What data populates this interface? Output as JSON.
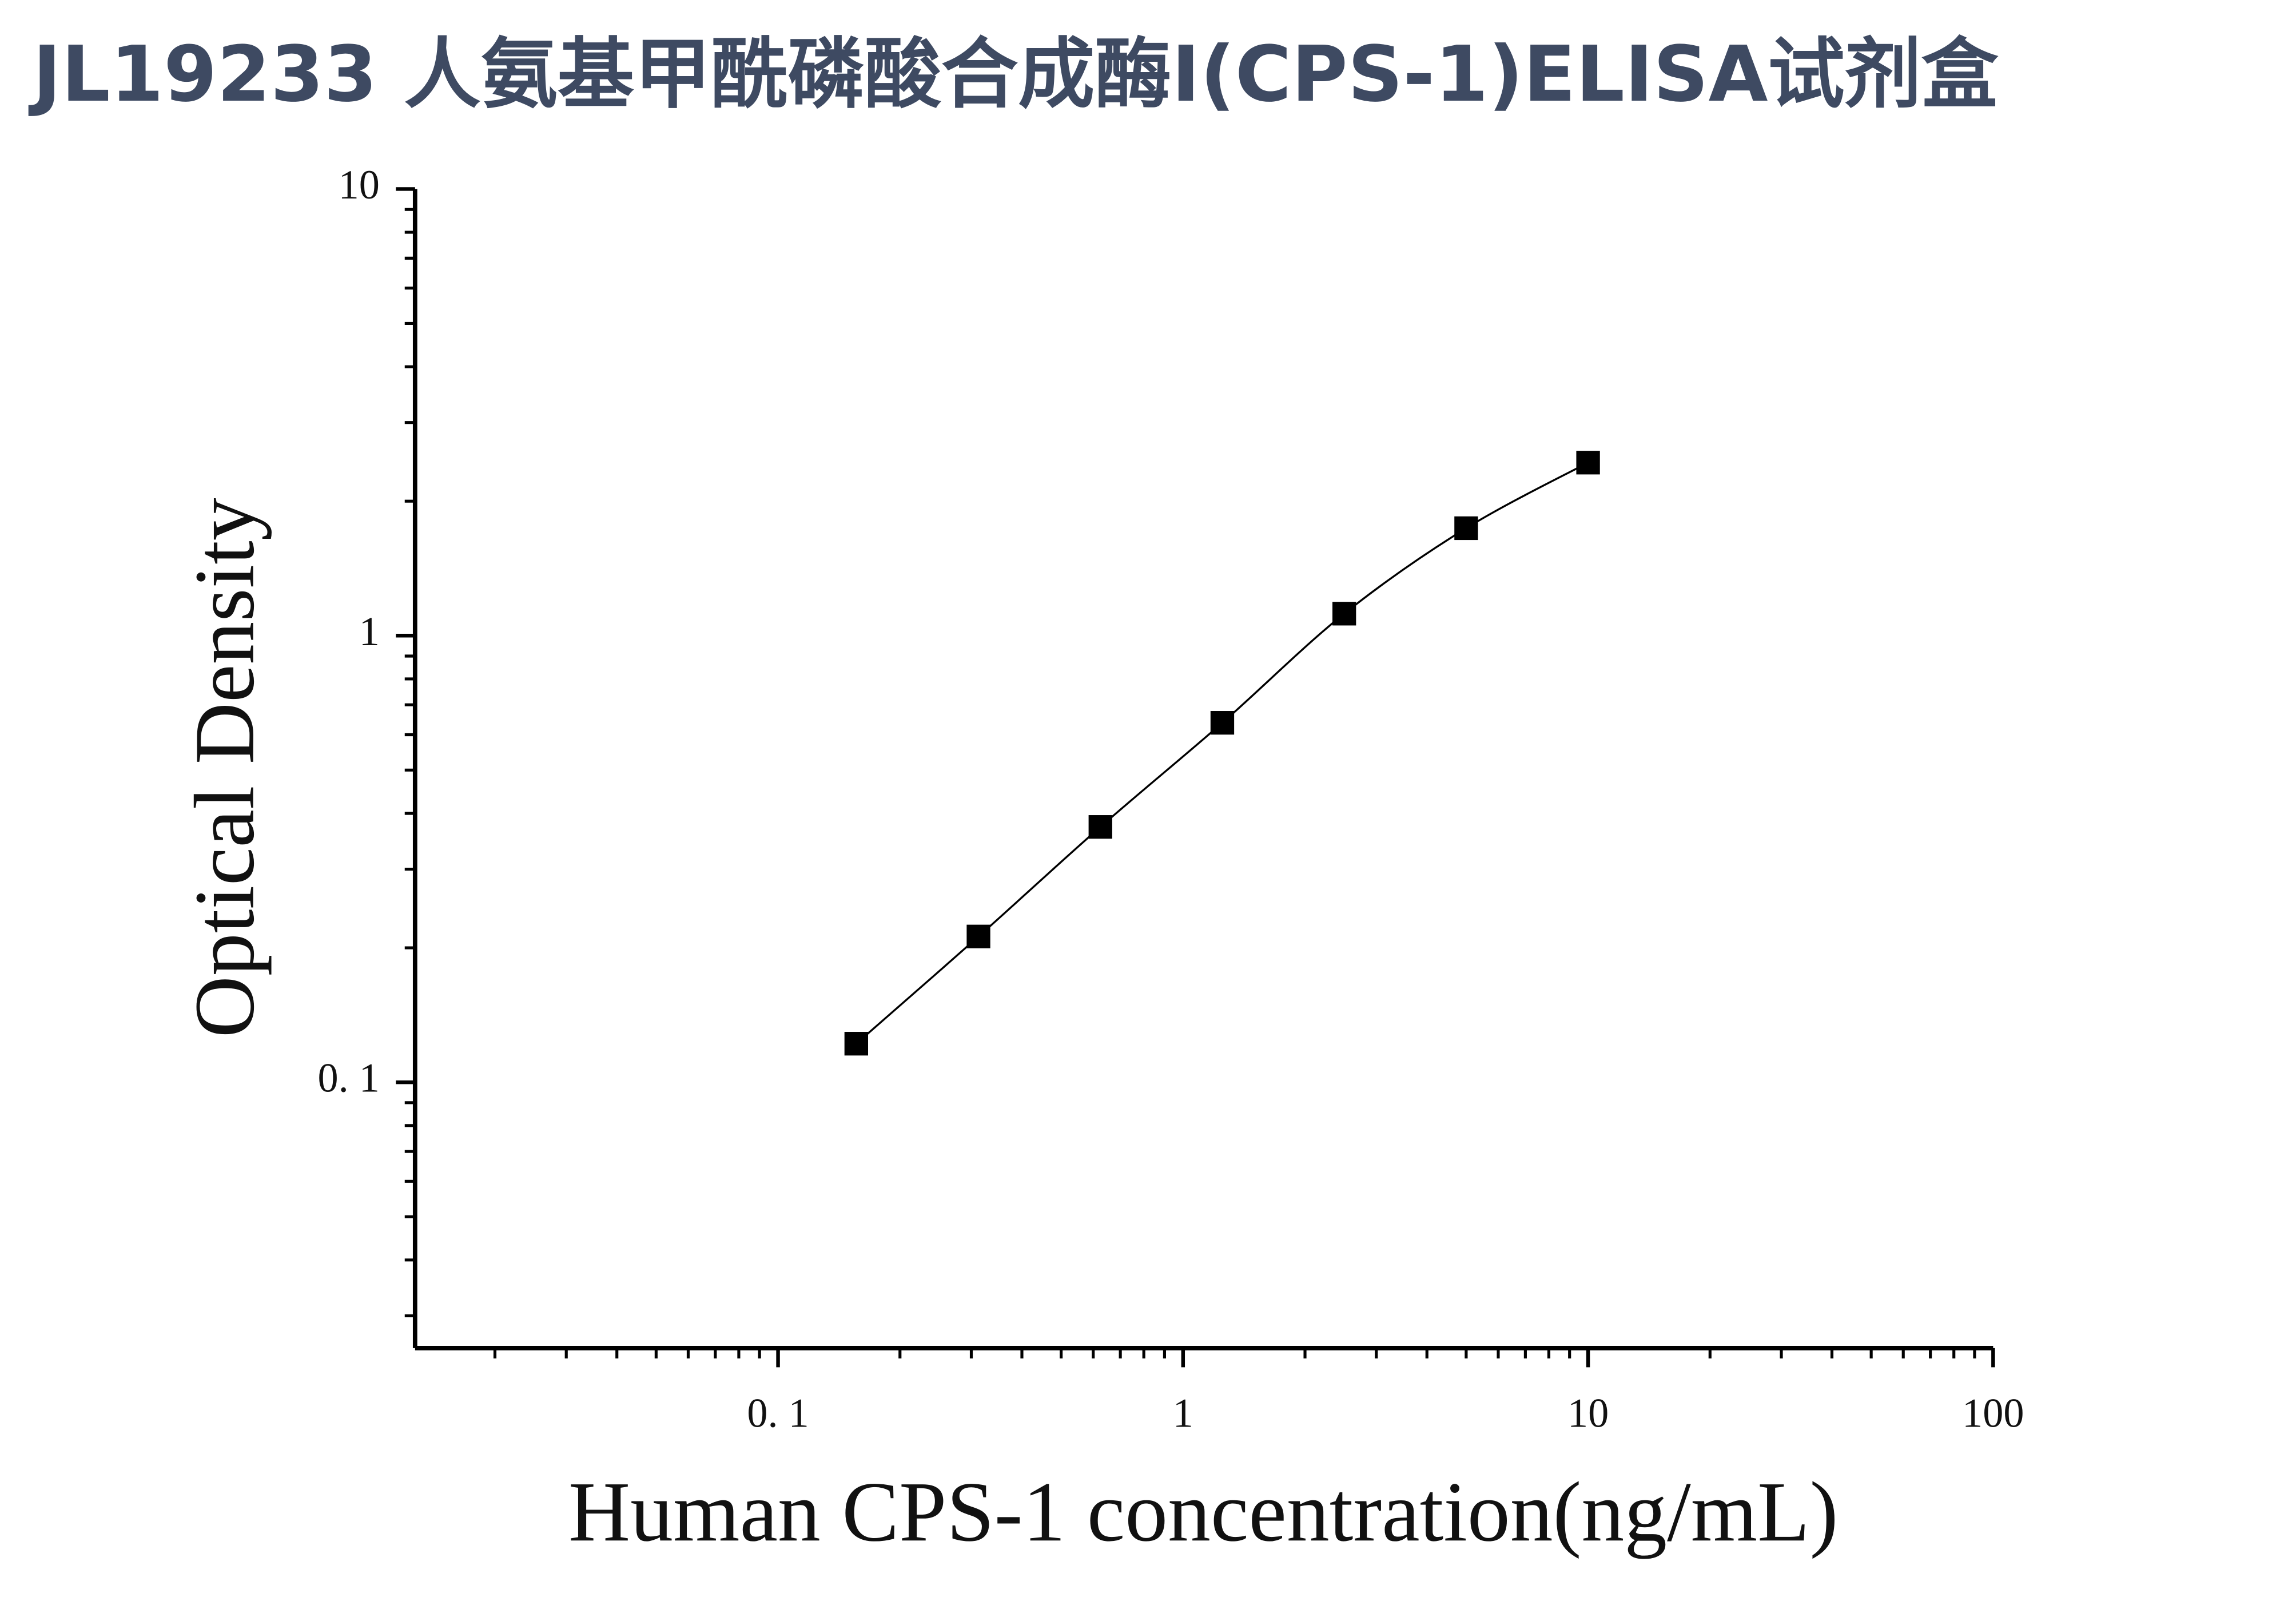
{
  "chart_data": {
    "type": "scatter",
    "title": "JL19233 人氨基甲酰磷酸合成酶I(CPS-1)ELISA试剂盒",
    "x_label": "Human CPS-1 concentration(ng/mL)",
    "y_label": "Optical Density",
    "x": [
      0.156,
      0.3125,
      0.625,
      1.25,
      2.5,
      5,
      10
    ],
    "series": [
      {
        "color": "#000000",
        "values": [
          0.122,
          0.212,
          0.373,
          0.638,
          1.12,
          1.74,
          2.44
        ]
      }
    ],
    "xlim": [
      0.0127,
      100
    ],
    "ylim": [
      0.0254,
      10
    ],
    "xticks": [
      {
        "value": 0.1,
        "label": "0. 1"
      },
      1,
      10,
      100
    ],
    "yticks": [
      {
        "value": 0.1,
        "label": "0. 1"
      },
      1,
      10
    ],
    "xlog": true,
    "ylog": true,
    "fit_line": true
  }
}
